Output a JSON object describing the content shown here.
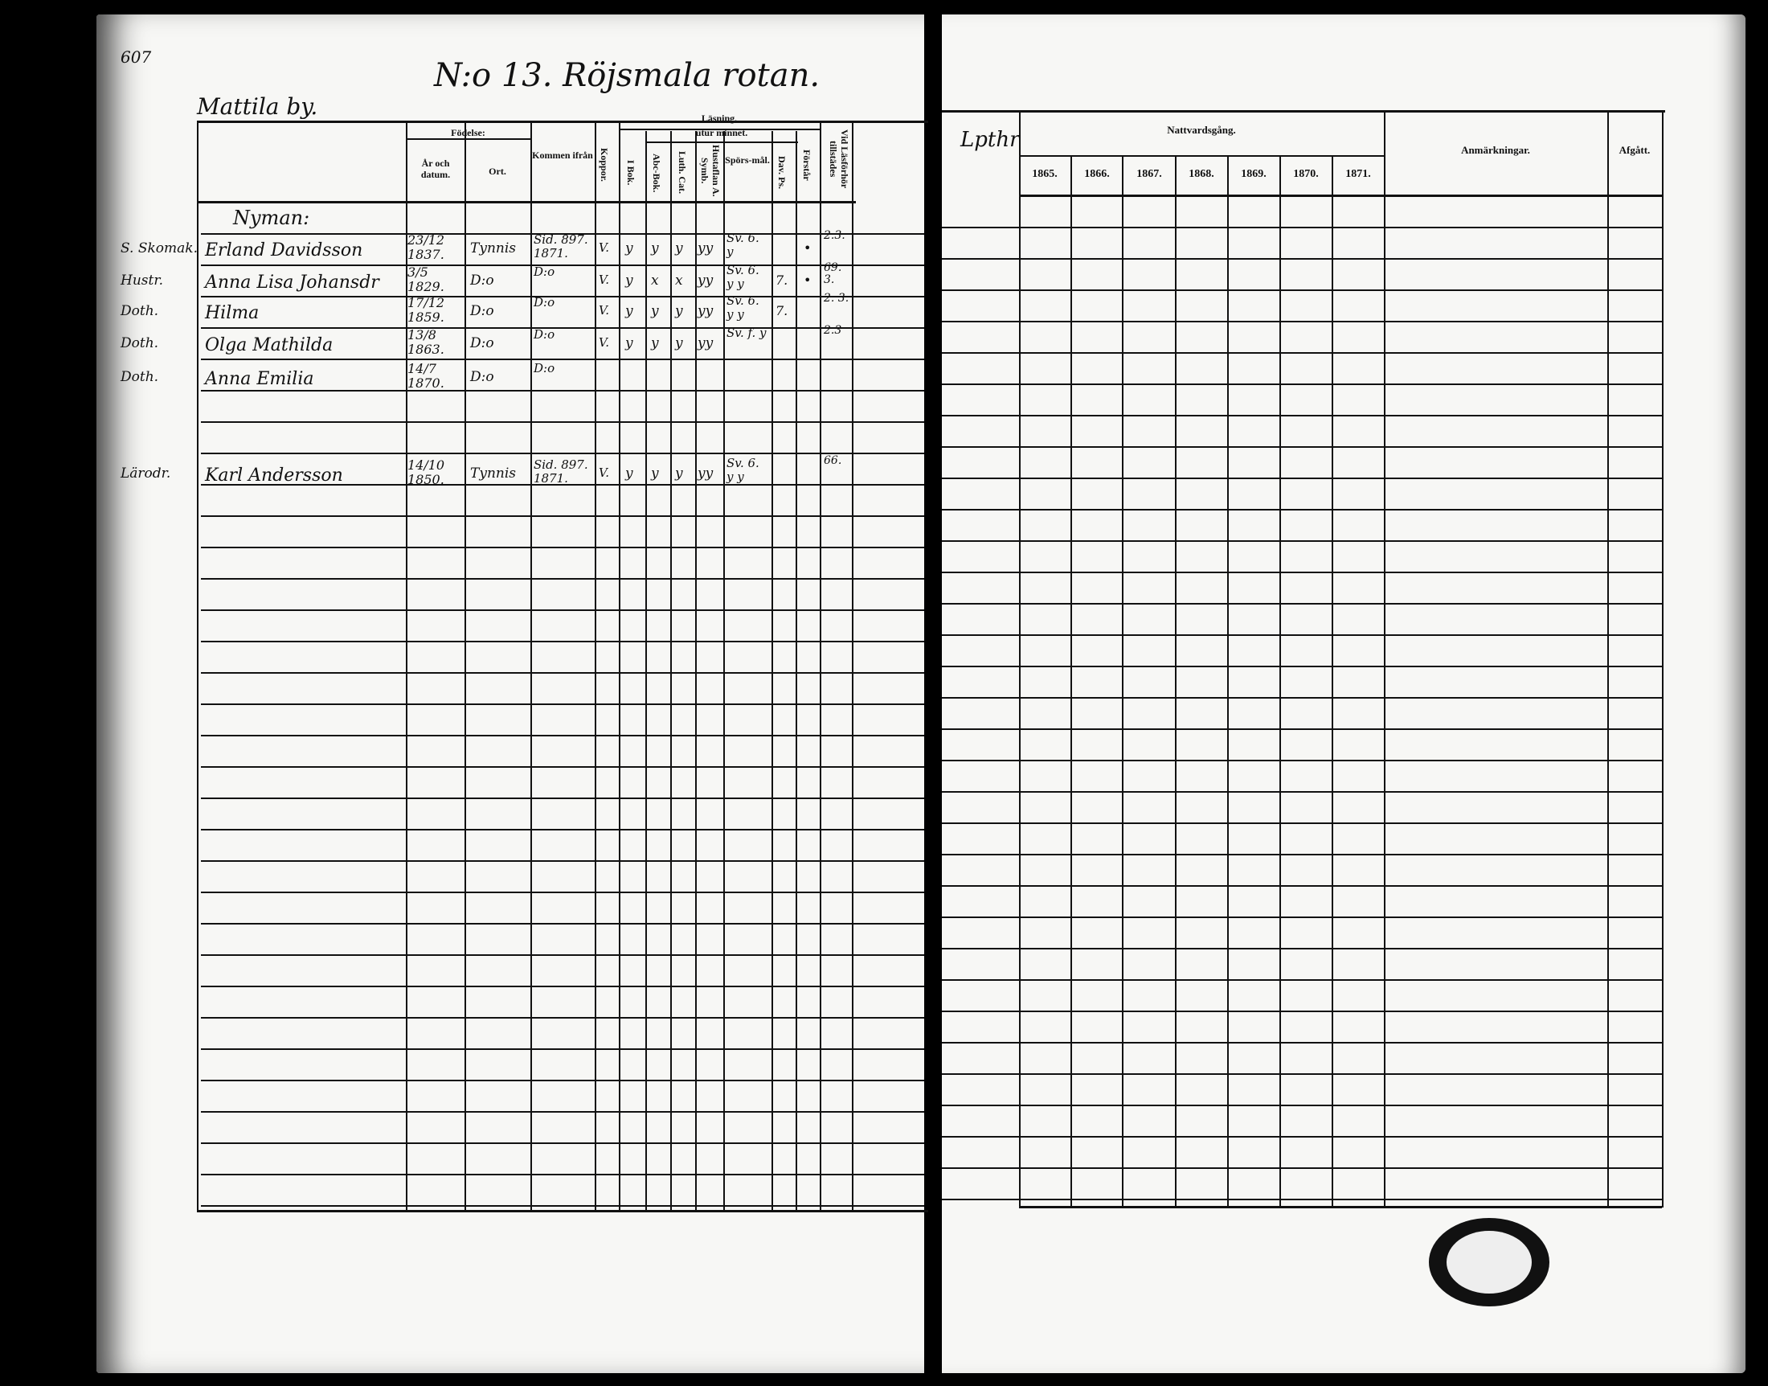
{
  "left_page": {
    "page_number": "607",
    "title": "N:o 13. Röjsmala rotan.",
    "subtitle": "Mattila by.",
    "headers": {
      "fodelse": "Födelse:",
      "ar": "År och datum.",
      "ort": "Ort.",
      "kommen": "Kommen ifrån",
      "koppor": "Koppor.",
      "lasning": "Läsning,",
      "utur_minnet": "utur minnet.",
      "bok": "I Bok.",
      "abc": "Abc-Bok.",
      "luth": "Luth. Cat.",
      "hustaflan": "Hustaflan A. Symb.",
      "sporsmal": "Spörs-mål.",
      "dav": "Dav. Ps.",
      "forstar": "Förstår",
      "vid": "Vid Läsförhör tillstädes"
    },
    "family_heading": "Nyman:",
    "records": [
      {
        "role": "S. Skomak.",
        "name": "Erland Davidsson",
        "date": "23/12 1837.",
        "place": "Tynnis",
        "from": "Sid. 897. 1871.",
        "koppor": "V.",
        "marks": [
          "y",
          "y",
          "y",
          "yy"
        ],
        "sporsmal": "Sv. 6. y",
        "dav": "",
        "forstar": "•",
        "vid": "2.3."
      },
      {
        "role": "Hustr.",
        "name": "Anna Lisa Johansdr",
        "date": "3/5 1829.",
        "place": "D:o",
        "from": "D:o",
        "koppor": "V.",
        "marks": [
          "y",
          "x",
          "x",
          "yy"
        ],
        "sporsmal": "Sv. 6. y y",
        "dav": "7.",
        "forstar": "•",
        "vid": "69. 3."
      },
      {
        "role": "Doth.",
        "name": "Hilma",
        "date": "17/12 1859.",
        "place": "D:o",
        "from": "D:o",
        "koppor": "V.",
        "marks": [
          "y",
          "y",
          "y",
          "yy"
        ],
        "sporsmal": "Sv. 6. y y",
        "dav": "7.",
        "forstar": "",
        "vid": "2. 3."
      },
      {
        "role": "Doth.",
        "name": "Olga Mathilda",
        "date": "13/8 1863.",
        "place": "D:o",
        "from": "D:o",
        "koppor": "V.",
        "marks": [
          "y",
          "y",
          "y",
          "yy"
        ],
        "sporsmal": "Sv. f. y",
        "dav": "",
        "forstar": "",
        "vid": "2.3"
      },
      {
        "role": "Doth.",
        "name": "Anna Emilia",
        "date": "14/7 1870.",
        "place": "D:o",
        "from": "D:o",
        "koppor": "",
        "marks": [
          "",
          "",
          "",
          ""
        ],
        "sporsmal": "",
        "dav": "",
        "forstar": "",
        "vid": ""
      },
      {
        "role": "Lärodr.",
        "name": "Karl Andersson",
        "date": "14/10 1850.",
        "place": "Tynnis",
        "from": "Sid. 897. 1871.",
        "koppor": "V.",
        "marks": [
          "y",
          "y",
          "y",
          "yy"
        ],
        "sporsmal": "Sv. 6. y y",
        "dav": "",
        "forstar": "",
        "vid": "66."
      }
    ]
  },
  "right_page": {
    "side_label": "Lpthr",
    "nattvard": "Nattvardsgång.",
    "years": [
      "1865.",
      "1866.",
      "1867.",
      "1868.",
      "1869.",
      "1870.",
      "1871."
    ],
    "anmarkningar": "Anmärkningar.",
    "afgatt": "Afgått."
  }
}
